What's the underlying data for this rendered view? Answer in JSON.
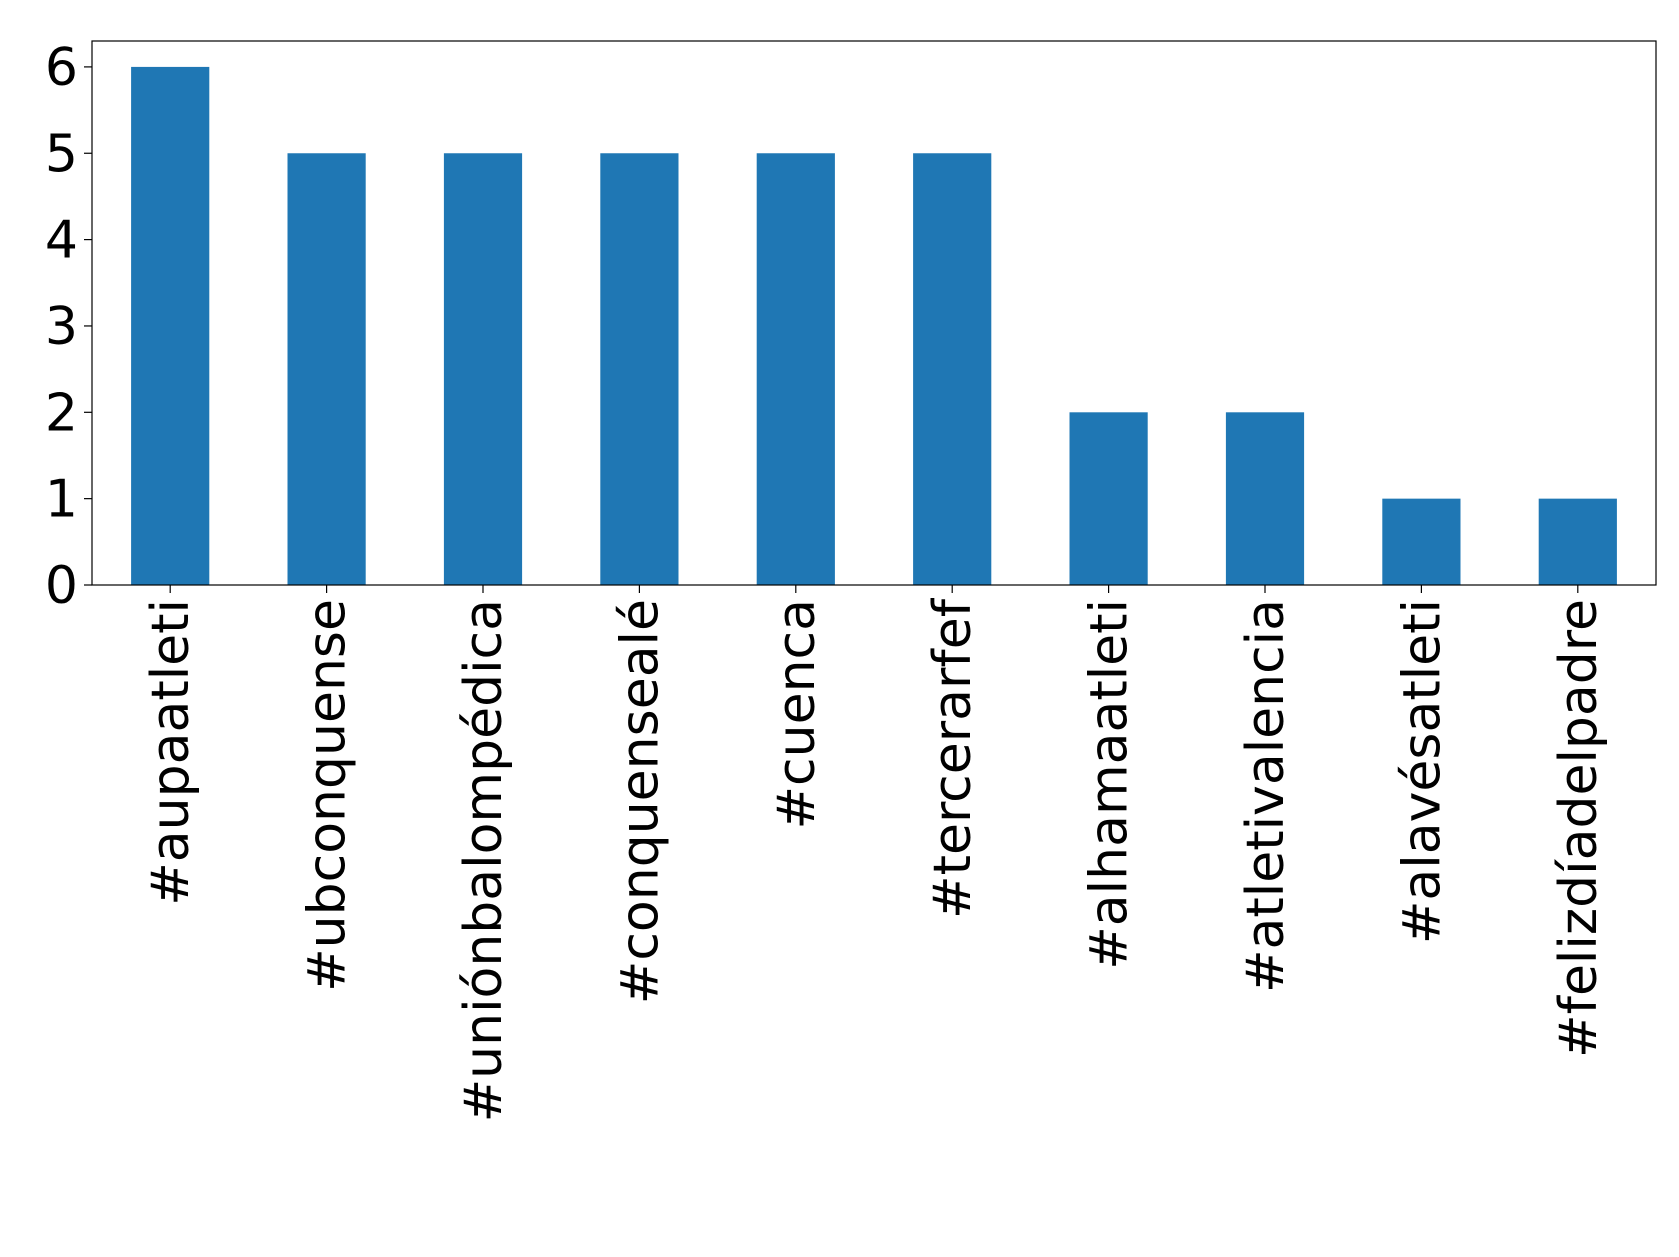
{
  "chart_data": {
    "type": "bar",
    "categories": [
      "#aupaatleti",
      "#ubconquense",
      "#uniónbalompédica",
      "#conquensealé",
      "#cuenca",
      "#tercerarfef",
      "#alhamaatleti",
      "#atletivalencia",
      "#alavésatleti",
      "#felizdíadelpadre"
    ],
    "values": [
      6,
      5,
      5,
      5,
      5,
      5,
      2,
      2,
      1,
      1
    ],
    "color": "#1f77b4",
    "ylim": [
      0,
      6.3
    ],
    "yticks": [
      0,
      1,
      2,
      3,
      4,
      5,
      6
    ],
    "grid": false
  }
}
